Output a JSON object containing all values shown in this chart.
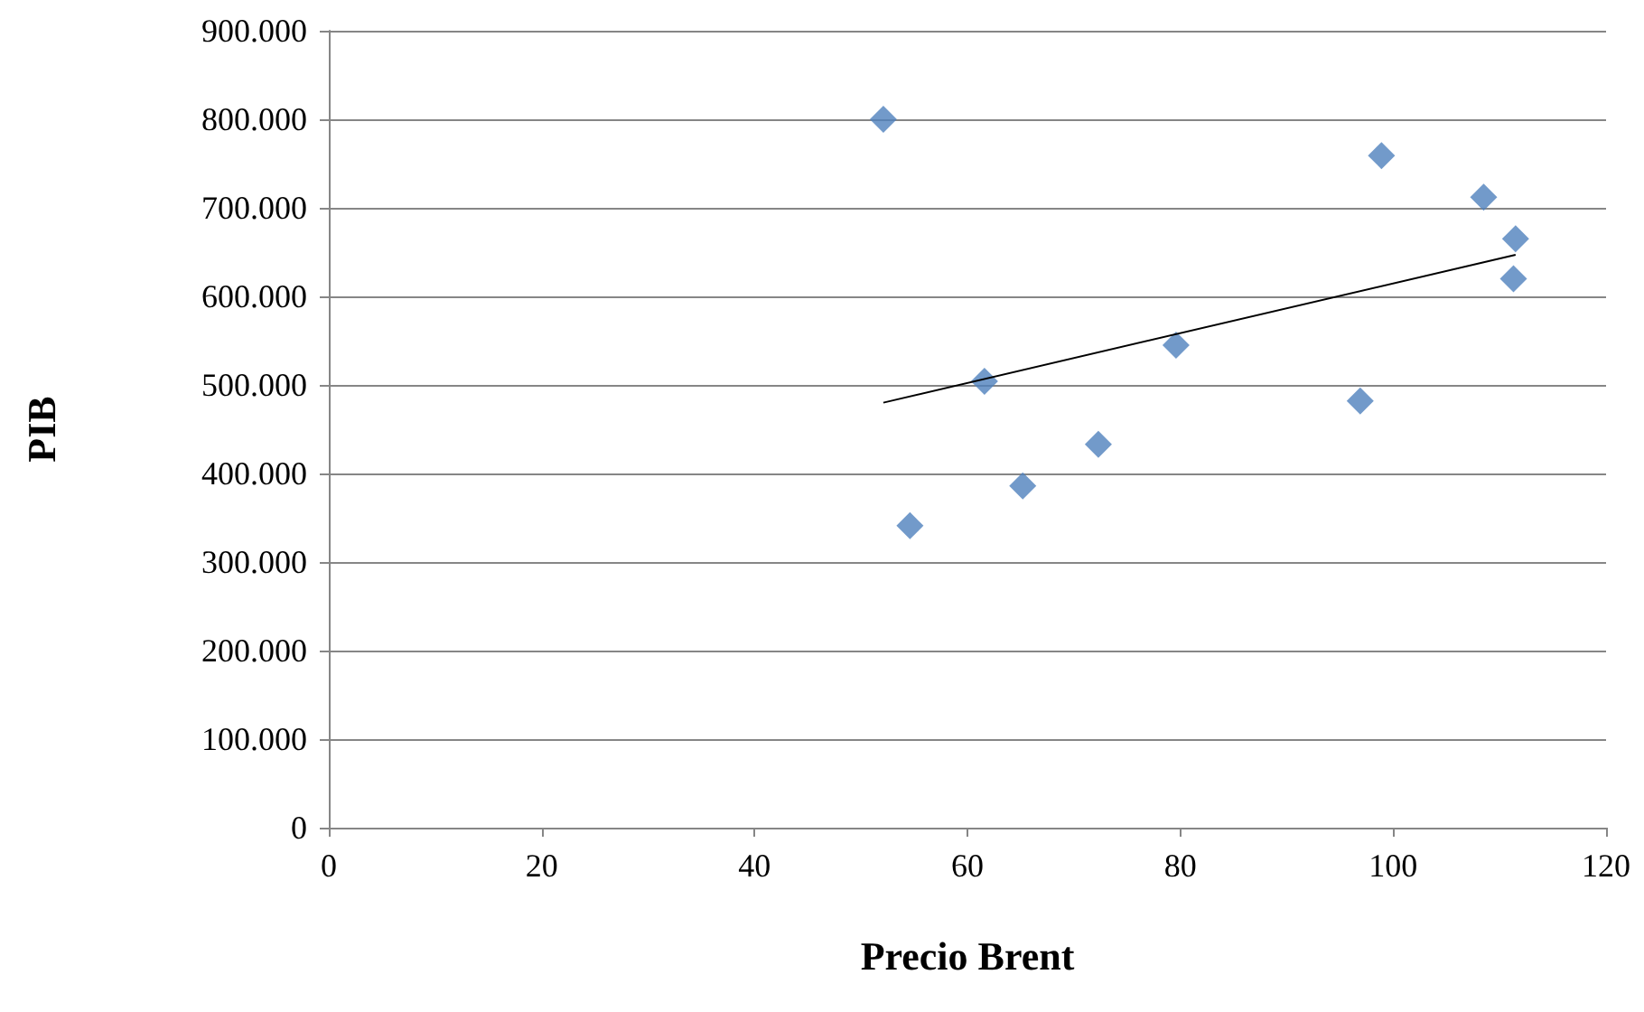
{
  "chart_data": {
    "type": "scatter",
    "xlabel": "Precio Brent",
    "ylabel": "PIB",
    "series": [
      {
        "color": "#4f81bd",
        "marker": "diamond",
        "x": [
          52.1,
          54.6,
          61.6,
          65.2,
          72.3,
          79.6,
          96.9,
          98.9,
          108.5,
          111.5,
          111.3
        ],
        "values": [
          800000,
          341000,
          504000,
          386000,
          433000,
          545000,
          482000,
          759000,
          712000,
          665000,
          620000
        ]
      },
      {
        "type": "line",
        "color": "#000000",
        "marker": "none",
        "x": [
          52.1,
          111.5
        ],
        "values": [
          480000,
          647000
        ]
      }
    ],
    "xlim": [
      0,
      120
    ],
    "xticks": [
      0,
      20,
      40,
      60,
      80,
      100,
      120
    ],
    "ylim": [
      0,
      900000
    ],
    "yticks": [
      0,
      {
        "value": 100000,
        "label": "100.000"
      },
      {
        "value": 200000,
        "label": "200.000"
      },
      {
        "value": 300000,
        "label": "300.000"
      },
      {
        "value": 400000,
        "label": "400.000"
      },
      {
        "value": 500000,
        "label": "500.000"
      },
      {
        "value": 600000,
        "label": "600.000"
      },
      {
        "value": 700000,
        "label": "700.000"
      },
      {
        "value": 800000,
        "label": "800.000"
      },
      {
        "value": 900000,
        "label": "900.000"
      }
    ],
    "grid": "y"
  }
}
